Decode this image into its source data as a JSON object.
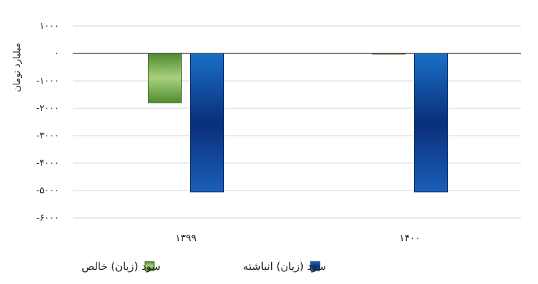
{
  "chart_data": {
    "type": "bar",
    "categories": [
      "۱۳۹۹",
      "۱۴۰۰"
    ],
    "series": [
      {
        "name": "سود (زیان) خالص",
        "values": [
          -1800,
          0
        ],
        "color": "#6fa34a"
      },
      {
        "name": "سود (زیان) انباشته",
        "values": [
          -5050,
          -5050
        ],
        "color": "#0d3f8f"
      }
    ],
    "ylabel": "میلیارد تومان",
    "ylim": [
      -6000,
      1000
    ],
    "yticks": [
      1000,
      0,
      -1000,
      -2000,
      -3000,
      -4000,
      -5000,
      -6000
    ],
    "ytick_labels": [
      "۱۰۰۰",
      "۰",
      "-۱۰۰۰",
      "-۲۰۰۰",
      "-۳۰۰۰",
      "-۴۰۰۰",
      "-۵۰۰۰",
      "-۶۰۰۰"
    ],
    "grid": true,
    "legend_position": "bottom"
  }
}
